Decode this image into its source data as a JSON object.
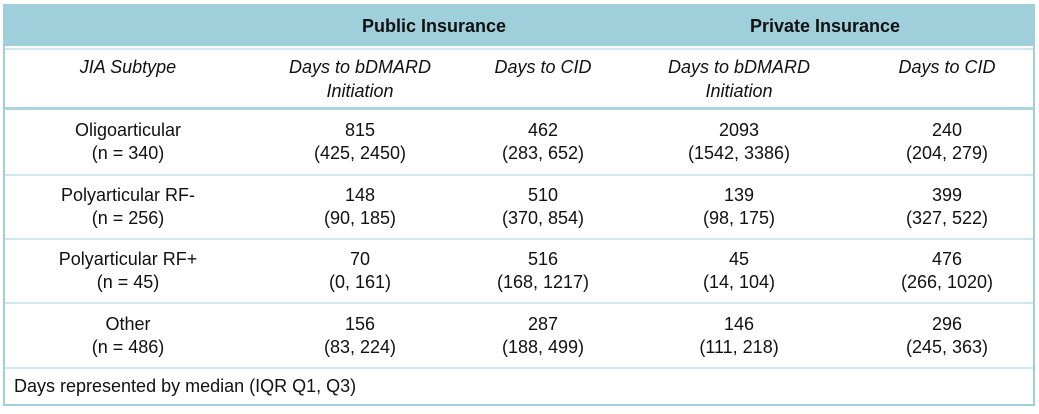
{
  "colors": {
    "header_bg": "#9ecfdb",
    "outer_border": "#9ecfdb",
    "row_divider": "#cfe8ee",
    "section_divider": "#abd6e1",
    "text": "#111111"
  },
  "table": {
    "column_groups": {
      "public": "Public Insurance",
      "private": "Private Insurance"
    },
    "subheaders": {
      "subtype": "JIA Subtype",
      "public_bdmard_line1": "Days to bDMARD",
      "public_bdmard_line2": "Initiation",
      "public_cid": "Days to CID",
      "private_bdmard_line1": "Days to bDMARD",
      "private_bdmard_line2": "Initiation",
      "private_cid": "Days to CID"
    },
    "rows": [
      {
        "subtype": "Oligoarticular",
        "n_label": "(n = 340)",
        "cells": [
          {
            "median": "815",
            "iqr": "(425, 2450)"
          },
          {
            "median": "462",
            "iqr": "(283, 652)"
          },
          {
            "median": "2093",
            "iqr": "(1542, 3386)"
          },
          {
            "median": "240",
            "iqr": "(204, 279)"
          }
        ]
      },
      {
        "subtype": "Polyarticular RF-",
        "n_label": "(n = 256)",
        "cells": [
          {
            "median": "148",
            "iqr": "(90, 185)"
          },
          {
            "median": "510",
            "iqr": "(370, 854)"
          },
          {
            "median": "139",
            "iqr": "(98, 175)"
          },
          {
            "median": "399",
            "iqr": "(327, 522)"
          }
        ]
      },
      {
        "subtype": "Polyarticular RF+",
        "n_label": "(n = 45)",
        "cells": [
          {
            "median": "70",
            "iqr": "(0, 161)"
          },
          {
            "median": "516",
            "iqr": "(168, 1217)"
          },
          {
            "median": "45",
            "iqr": "(14, 104)"
          },
          {
            "median": "476",
            "iqr": "(266, 1020)"
          }
        ]
      },
      {
        "subtype": "Other",
        "n_label": "(n = 486)",
        "cells": [
          {
            "median": "156",
            "iqr": "(83, 224)"
          },
          {
            "median": "287",
            "iqr": "(188, 499)"
          },
          {
            "median": "146",
            "iqr": "(111, 218)"
          },
          {
            "median": "296",
            "iqr": "(245, 363)"
          }
        ]
      }
    ],
    "footnote": "Days represented by median (IQR Q1, Q3)"
  }
}
